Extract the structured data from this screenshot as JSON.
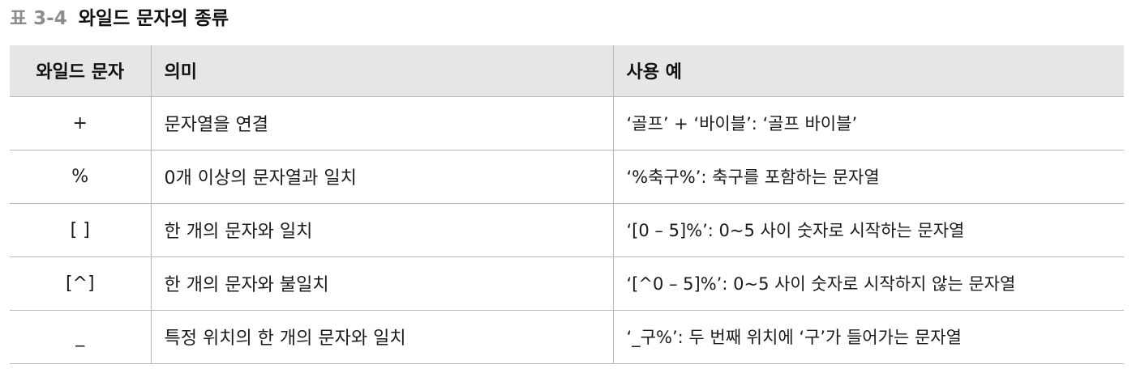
{
  "caption": {
    "number": "표 3-4",
    "title": "와일드 문자의 종류"
  },
  "table": {
    "headers": {
      "wildcard": "와일드 문자",
      "meaning": "의미",
      "example": "사용 예"
    },
    "rows": [
      {
        "wildcard": "+",
        "meaning": "문자열을 연결",
        "example": "‘골프’ + ‘바이블’: ‘골프 바이블’"
      },
      {
        "wildcard": "%",
        "meaning": "0개 이상의 문자열과 일치",
        "example": "‘%축구%’: 축구를 포함하는 문자열"
      },
      {
        "wildcard": "[ ]",
        "meaning": "한 개의 문자와 일치",
        "example": "‘[0 – 5]%’: 0~5 사이 숫자로 시작하는 문자열"
      },
      {
        "wildcard": "[^]",
        "meaning": "한 개의 문자와 불일치",
        "example": "‘[^0 – 5]%’: 0~5 사이 숫자로 시작하지 않는 문자열"
      },
      {
        "wildcard": "_",
        "meaning": "특정 위치의 한 개의 문자와 일치",
        "example": "‘_구%’: 두 번째 위치에 ‘구’가 들어가는 문자열"
      }
    ]
  }
}
